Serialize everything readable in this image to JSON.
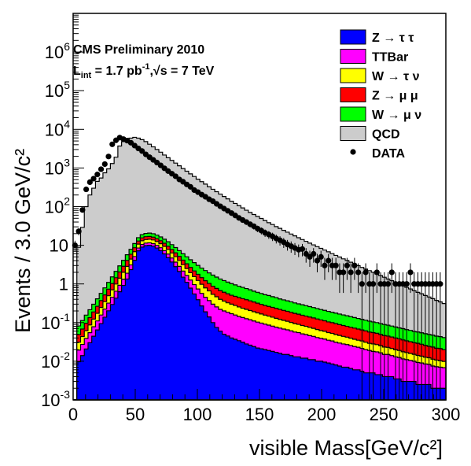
{
  "chart_data": {
    "type": "stacked-histogram",
    "xlabel": "visible Mass[GeV/c²]",
    "ylabel": "Events / 3.0 GeV/c²",
    "xlim": [
      0,
      300
    ],
    "ylim": [
      0.001,
      10000000
    ],
    "log_y": true,
    "x_ticks": [
      "0",
      "50",
      "100",
      "150",
      "200",
      "250",
      "300"
    ],
    "y_ticks": [
      "10⁻³",
      "10⁻²",
      "10⁻¹",
      "1",
      "10",
      "10²",
      "10³",
      "10⁴",
      "10⁵",
      "10⁶"
    ],
    "annotations": [
      "CMS Preliminary 2010",
      "L_int = 1.7 pb⁻¹, √s = 7 TeV"
    ],
    "annotation_parts": {
      "lumi_L": "L",
      "lumi_int": "int",
      "lumi_value": " = 1.7 pb",
      "lumi_exp": "-1",
      "lumi_sqrt": ",√s = 7 TeV"
    },
    "legend_position": "top-right",
    "bin_edges_start": 0,
    "bin_width": 3,
    "series": [
      {
        "name": "Z → τ τ",
        "color": "#0000ff",
        "values": [
          0,
          0.0097,
          0.014,
          0.0207,
          0.0302,
          0.0443,
          0.0646,
          0.0943,
          0.138,
          0.202,
          0.294,
          0.43,
          0.628,
          0.916,
          1.34,
          2.35,
          4.1,
          7.2,
          9.0,
          9.8,
          10.0,
          9.5,
          8.5,
          7.3,
          6.0,
          4.8,
          3.7,
          2.8,
          2.1,
          1.5,
          1.1,
          0.78,
          0.55,
          0.39,
          0.27,
          0.19,
          0.14,
          0.1,
          0.075,
          0.06,
          0.05,
          0.045,
          0.04,
          0.037,
          0.034,
          0.031,
          0.028,
          0.026,
          0.024,
          0.022,
          0.021,
          0.02,
          0.019,
          0.018,
          0.017,
          0.016,
          0.015,
          0.015,
          0.014,
          0.013,
          0.013,
          0.012,
          0.012,
          0.011,
          0.011,
          0.01,
          0.01,
          0.0095,
          0.009,
          0.0085,
          0.008,
          0.0075,
          0.007,
          0.007,
          0.0065,
          0.006,
          0.006,
          0.0055,
          0.005,
          0.005,
          0.005,
          0.0045,
          0.0045,
          0.004,
          0.004,
          0.004,
          0.0035,
          0.0035,
          0.003,
          0.003,
          0.003,
          0.003,
          0.0025,
          0.0025,
          0.0025,
          0.0025,
          0.002,
          0.002,
          0.002,
          0.002
        ]
      },
      {
        "name": "TTBar",
        "color": "#ff00ff",
        "values": [
          0,
          0.0097,
          0.0132,
          0.0181,
          0.0247,
          0.0336,
          0.0459,
          0.0627,
          0.0856,
          0.117,
          0.16,
          0.218,
          0.298,
          0.406,
          0.554,
          0.75,
          1.0,
          1.3,
          1.5,
          1.6,
          1.6,
          1.55,
          1.45,
          1.35,
          1.25,
          1.12,
          0.99,
          0.87,
          0.75,
          0.65,
          0.56,
          0.48,
          0.41,
          0.35,
          0.3,
          0.26,
          0.23,
          0.2,
          0.18,
          0.16,
          0.15,
          0.14,
          0.13,
          0.12,
          0.11,
          0.104,
          0.098,
          0.092,
          0.086,
          0.081,
          0.076,
          0.071,
          0.067,
          0.063,
          0.059,
          0.056,
          0.053,
          0.05,
          0.047,
          0.044,
          0.042,
          0.039,
          0.037,
          0.035,
          0.033,
          0.031,
          0.029,
          0.028,
          0.026,
          0.025,
          0.023,
          0.022,
          0.021,
          0.02,
          0.019,
          0.018,
          0.017,
          0.016,
          0.015,
          0.014,
          0.013,
          0.013,
          0.012,
          0.011,
          0.011,
          0.01,
          0.0095,
          0.009,
          0.0085,
          0.008,
          0.0075,
          0.007,
          0.0068,
          0.0065,
          0.006,
          0.0058,
          0.0055,
          0.0052,
          0.005,
          0.0048
        ]
      },
      {
        "name": "W → τ ν",
        "color": "#ffff00",
        "values": [
          0,
          0.0116,
          0.0163,
          0.0229,
          0.0322,
          0.0452,
          0.0635,
          0.0891,
          0.125,
          0.176,
          0.247,
          0.346,
          0.486,
          0.682,
          0.958,
          1.29,
          1.73,
          2.2,
          2.58,
          2.69,
          2.75,
          2.69,
          2.54,
          2.34,
          2.11,
          1.86,
          1.62,
          1.4,
          1.19,
          1.01,
          0.84,
          0.7,
          0.59,
          0.49,
          0.41,
          0.34,
          0.29,
          0.24,
          0.21,
          0.18,
          0.16,
          0.14,
          0.13,
          0.12,
          0.11,
          0.1,
          0.094,
          0.087,
          0.081,
          0.075,
          0.07,
          0.065,
          0.061,
          0.057,
          0.053,
          0.049,
          0.046,
          0.043,
          0.04,
          0.037,
          0.035,
          0.033,
          0.031,
          0.029,
          0.027,
          0.025,
          0.023,
          0.022,
          0.02,
          0.019,
          0.018,
          0.017,
          0.016,
          0.015,
          0.014,
          0.013,
          0.012,
          0.012,
          0.011,
          0.01,
          0.01,
          0.0094,
          0.0088,
          0.0083,
          0.0078,
          0.0073,
          0.0069,
          0.0065,
          0.0061,
          0.0057,
          0.0054,
          0.0051,
          0.0048,
          0.0045,
          0.0042,
          0.004,
          0.0038,
          0.0035,
          0.0033,
          0.0031
        ]
      },
      {
        "name": "Z → μ μ",
        "color": "#ff0000",
        "values": [
          0,
          0.0178,
          0.0246,
          0.034,
          0.047,
          0.065,
          0.0898,
          0.124,
          0.172,
          0.237,
          0.328,
          0.453,
          0.627,
          0.866,
          1.2,
          1.48,
          1.83,
          2.18,
          2.46,
          2.6,
          2.6,
          2.5,
          2.33,
          2.14,
          1.93,
          1.7,
          1.48,
          1.29,
          1.11,
          0.96,
          0.82,
          0.71,
          0.62,
          0.54,
          0.47,
          0.42,
          0.37,
          0.33,
          0.3,
          0.27,
          0.25,
          0.23,
          0.21,
          0.2,
          0.19,
          0.18,
          0.17,
          0.16,
          0.15,
          0.14,
          0.13,
          0.12,
          0.115,
          0.11,
          0.104,
          0.098,
          0.093,
          0.088,
          0.083,
          0.079,
          0.075,
          0.071,
          0.067,
          0.064,
          0.061,
          0.058,
          0.055,
          0.052,
          0.049,
          0.047,
          0.045,
          0.042,
          0.04,
          0.038,
          0.036,
          0.035,
          0.033,
          0.031,
          0.03,
          0.028,
          0.027,
          0.026,
          0.024,
          0.023,
          0.022,
          0.021,
          0.02,
          0.019,
          0.018,
          0.017,
          0.016,
          0.015,
          0.015,
          0.014,
          0.013,
          0.012,
          0.012,
          0.011,
          0.011,
          0.01
        ]
      },
      {
        "name": "W → μ ν",
        "color": "#00ff00",
        "values": [
          0,
          0.0331,
          0.0447,
          0.0603,
          0.0814,
          0.11,
          0.148,
          0.2,
          0.27,
          0.365,
          0.493,
          0.665,
          0.898,
          1.21,
          1.64,
          2.0,
          2.44,
          2.86,
          3.27,
          3.56,
          3.68,
          3.65,
          3.51,
          3.31,
          3.09,
          2.84,
          2.59,
          2.36,
          2.12,
          1.92,
          1.72,
          1.55,
          1.39,
          1.25,
          1.12,
          1.01,
          0.9,
          0.82,
          0.74,
          0.67,
          0.61,
          0.56,
          0.51,
          0.47,
          0.43,
          0.4,
          0.37,
          0.34,
          0.31,
          0.29,
          0.27,
          0.25,
          0.24,
          0.22,
          0.21,
          0.19,
          0.18,
          0.17,
          0.16,
          0.15,
          0.14,
          0.135,
          0.127,
          0.12,
          0.113,
          0.107,
          0.101,
          0.096,
          0.091,
          0.086,
          0.082,
          0.078,
          0.074,
          0.07,
          0.067,
          0.063,
          0.06,
          0.057,
          0.054,
          0.052,
          0.049,
          0.047,
          0.045,
          0.043,
          0.041,
          0.039,
          0.037,
          0.035,
          0.034,
          0.032,
          0.031,
          0.029,
          0.028,
          0.027,
          0.026,
          0.025,
          0.024,
          0.023,
          0.022,
          0.021
        ]
      },
      {
        "name": "QCD",
        "color": "#cccccc",
        "values": [
          0,
          8.8,
          29,
          100,
          200,
          300,
          450,
          550,
          750,
          950,
          1300,
          1900,
          3700,
          4800,
          5600,
          5900,
          6200,
          5900,
          5400,
          4800,
          4100,
          3500,
          3000,
          2550,
          2150,
          1830,
          1560,
          1330,
          1130,
          960,
          820,
          700,
          600,
          510,
          440,
          380,
          325,
          280,
          242,
          210,
          182,
          158,
          137,
          120,
          105,
          92,
          80,
          70,
          62,
          55,
          49,
          43,
          38,
          34,
          30,
          27,
          24,
          21.5,
          19.2,
          17.2,
          15.4,
          13.8,
          12.4,
          11.1,
          10.0,
          9.0,
          8.1,
          7.3,
          6.6,
          5.9,
          5.3,
          4.8,
          4.3,
          3.9,
          3.5,
          3.15,
          2.85,
          2.55,
          2.3,
          2.1,
          1.9,
          1.7,
          1.55,
          1.4,
          1.25,
          1.13,
          1.02,
          0.92,
          0.83,
          0.75,
          0.68,
          0.61,
          0.55,
          0.5,
          0.45,
          0.41,
          0.37,
          0.33,
          0.3,
          0.27
        ]
      }
    ],
    "data": {
      "name": "DATA",
      "x": [
        1.5,
        4.5,
        7.5,
        10.5,
        13.5,
        16.5,
        19.5,
        22.5,
        25.5,
        28.5,
        31.5,
        34.5,
        37.5,
        40.5,
        43.5,
        46.5,
        49.5,
        52.5,
        55.5,
        58.5,
        61.5,
        64.5,
        67.5,
        70.5,
        73.5,
        76.5,
        79.5,
        82.5,
        85.5,
        88.5,
        91.5,
        94.5,
        97.5,
        100.5,
        103.5,
        106.5,
        109.5,
        112.5,
        115.5,
        118.5,
        121.5,
        124.5,
        127.5,
        130.5,
        133.5,
        136.5,
        139.5,
        142.5,
        145.5,
        148.5,
        151.5,
        154.5,
        157.5,
        160.5,
        163.5,
        166.5,
        169.5,
        172.5,
        175.5,
        178.5,
        181.5,
        184.5,
        187.5,
        190.5,
        193.5,
        196.5,
        199.5,
        202.5,
        205.5,
        208.5,
        211.5,
        214.5,
        217.5,
        220.5,
        223.5,
        226.5,
        229.5,
        232.5,
        235.5,
        238.5,
        241.5,
        244.5,
        247.5,
        250.5,
        253.5,
        256.5,
        259.5,
        262.5,
        265.5,
        268.5,
        271.5,
        274.5,
        277.5,
        280.5,
        283.5,
        286.5,
        289.5,
        292.5,
        295.5
      ],
      "y": [
        10,
        23,
        82,
        280,
        430,
        530,
        680,
        930,
        1260,
        1980,
        4100,
        5200,
        6100,
        5600,
        5100,
        4500,
        3800,
        3200,
        2740,
        2250,
        1900,
        1620,
        1380,
        1170,
        980,
        830,
        710,
        610,
        505,
        440,
        375,
        325,
        268,
        237,
        205,
        180,
        155,
        138,
        118,
        102,
        89,
        78,
        68,
        59,
        51,
        45,
        40,
        35,
        31,
        27,
        24,
        21,
        19,
        17,
        15,
        13.5,
        12,
        10.5,
        9.5,
        8.5,
        7.7,
        8,
        6,
        5,
        6,
        4,
        5,
        3,
        4,
        3,
        3,
        2,
        2,
        3,
        2,
        3,
        2,
        1,
        2,
        1,
        1,
        2,
        1,
        1,
        1,
        2,
        1,
        1,
        1,
        1,
        2,
        1,
        1,
        1,
        1,
        1,
        1,
        1,
        1
      ]
    }
  }
}
